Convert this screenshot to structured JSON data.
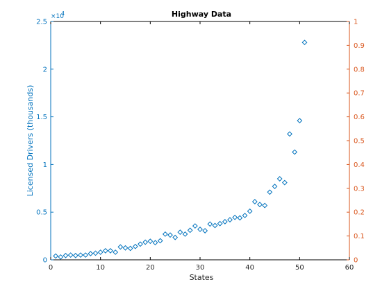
{
  "chart_data": {
    "type": "scatter",
    "title": "Highway Data",
    "xlabel": "States",
    "ylabel": "Licensed Drivers (thousands)",
    "y_multiplier_label": "×10",
    "y_multiplier_exponent": "4",
    "xlim": [
      0,
      60
    ],
    "ylim": [
      0,
      25000
    ],
    "y2lim": [
      0,
      1
    ],
    "x_ticks": [
      0,
      10,
      20,
      30,
      40,
      50,
      60
    ],
    "y_ticks": [
      0,
      5000,
      10000,
      15000,
      20000,
      25000
    ],
    "y_tick_labels": [
      "0",
      "0.5",
      "1",
      "1.5",
      "2",
      "2.5"
    ],
    "y2_ticks": [
      0,
      0.1,
      0.2,
      0.3,
      0.4,
      0.5,
      0.6,
      0.7,
      0.8,
      0.9,
      1
    ],
    "y2_tick_labels": [
      "0",
      "0.1",
      "0.2",
      "0.3",
      "0.4",
      "0.5",
      "0.6",
      "0.7",
      "0.8",
      "0.9",
      "1"
    ],
    "grid": false,
    "marker": "diamond",
    "colors": {
      "left_axis": "#0072BD",
      "right_axis": "#D95319",
      "markers": "#0072BD",
      "box": "#000000"
    },
    "series": [
      {
        "x": [
          1,
          2,
          3,
          4,
          5,
          6,
          7,
          8,
          9,
          10,
          11,
          12,
          13,
          14,
          15,
          16,
          17,
          18,
          19,
          20,
          21,
          22,
          23,
          24,
          25,
          26,
          27,
          28,
          29,
          30,
          31,
          32,
          33,
          34,
          35,
          36,
          37,
          38,
          39,
          40,
          41,
          42,
          43,
          44,
          45,
          46,
          47,
          48,
          49,
          50,
          51
        ],
        "y": [
          400,
          300,
          450,
          500,
          450,
          500,
          500,
          650,
          700,
          800,
          950,
          950,
          800,
          1350,
          1250,
          1200,
          1400,
          1650,
          1850,
          1950,
          1800,
          2000,
          2700,
          2600,
          2350,
          2900,
          2700,
          3100,
          3550,
          3200,
          3050,
          3750,
          3600,
          3800,
          4000,
          4200,
          4450,
          4400,
          4650,
          5100,
          6100,
          5800,
          5700,
          7100,
          7700,
          8500,
          8100,
          13200,
          11300,
          14600,
          22800
        ]
      }
    ]
  }
}
